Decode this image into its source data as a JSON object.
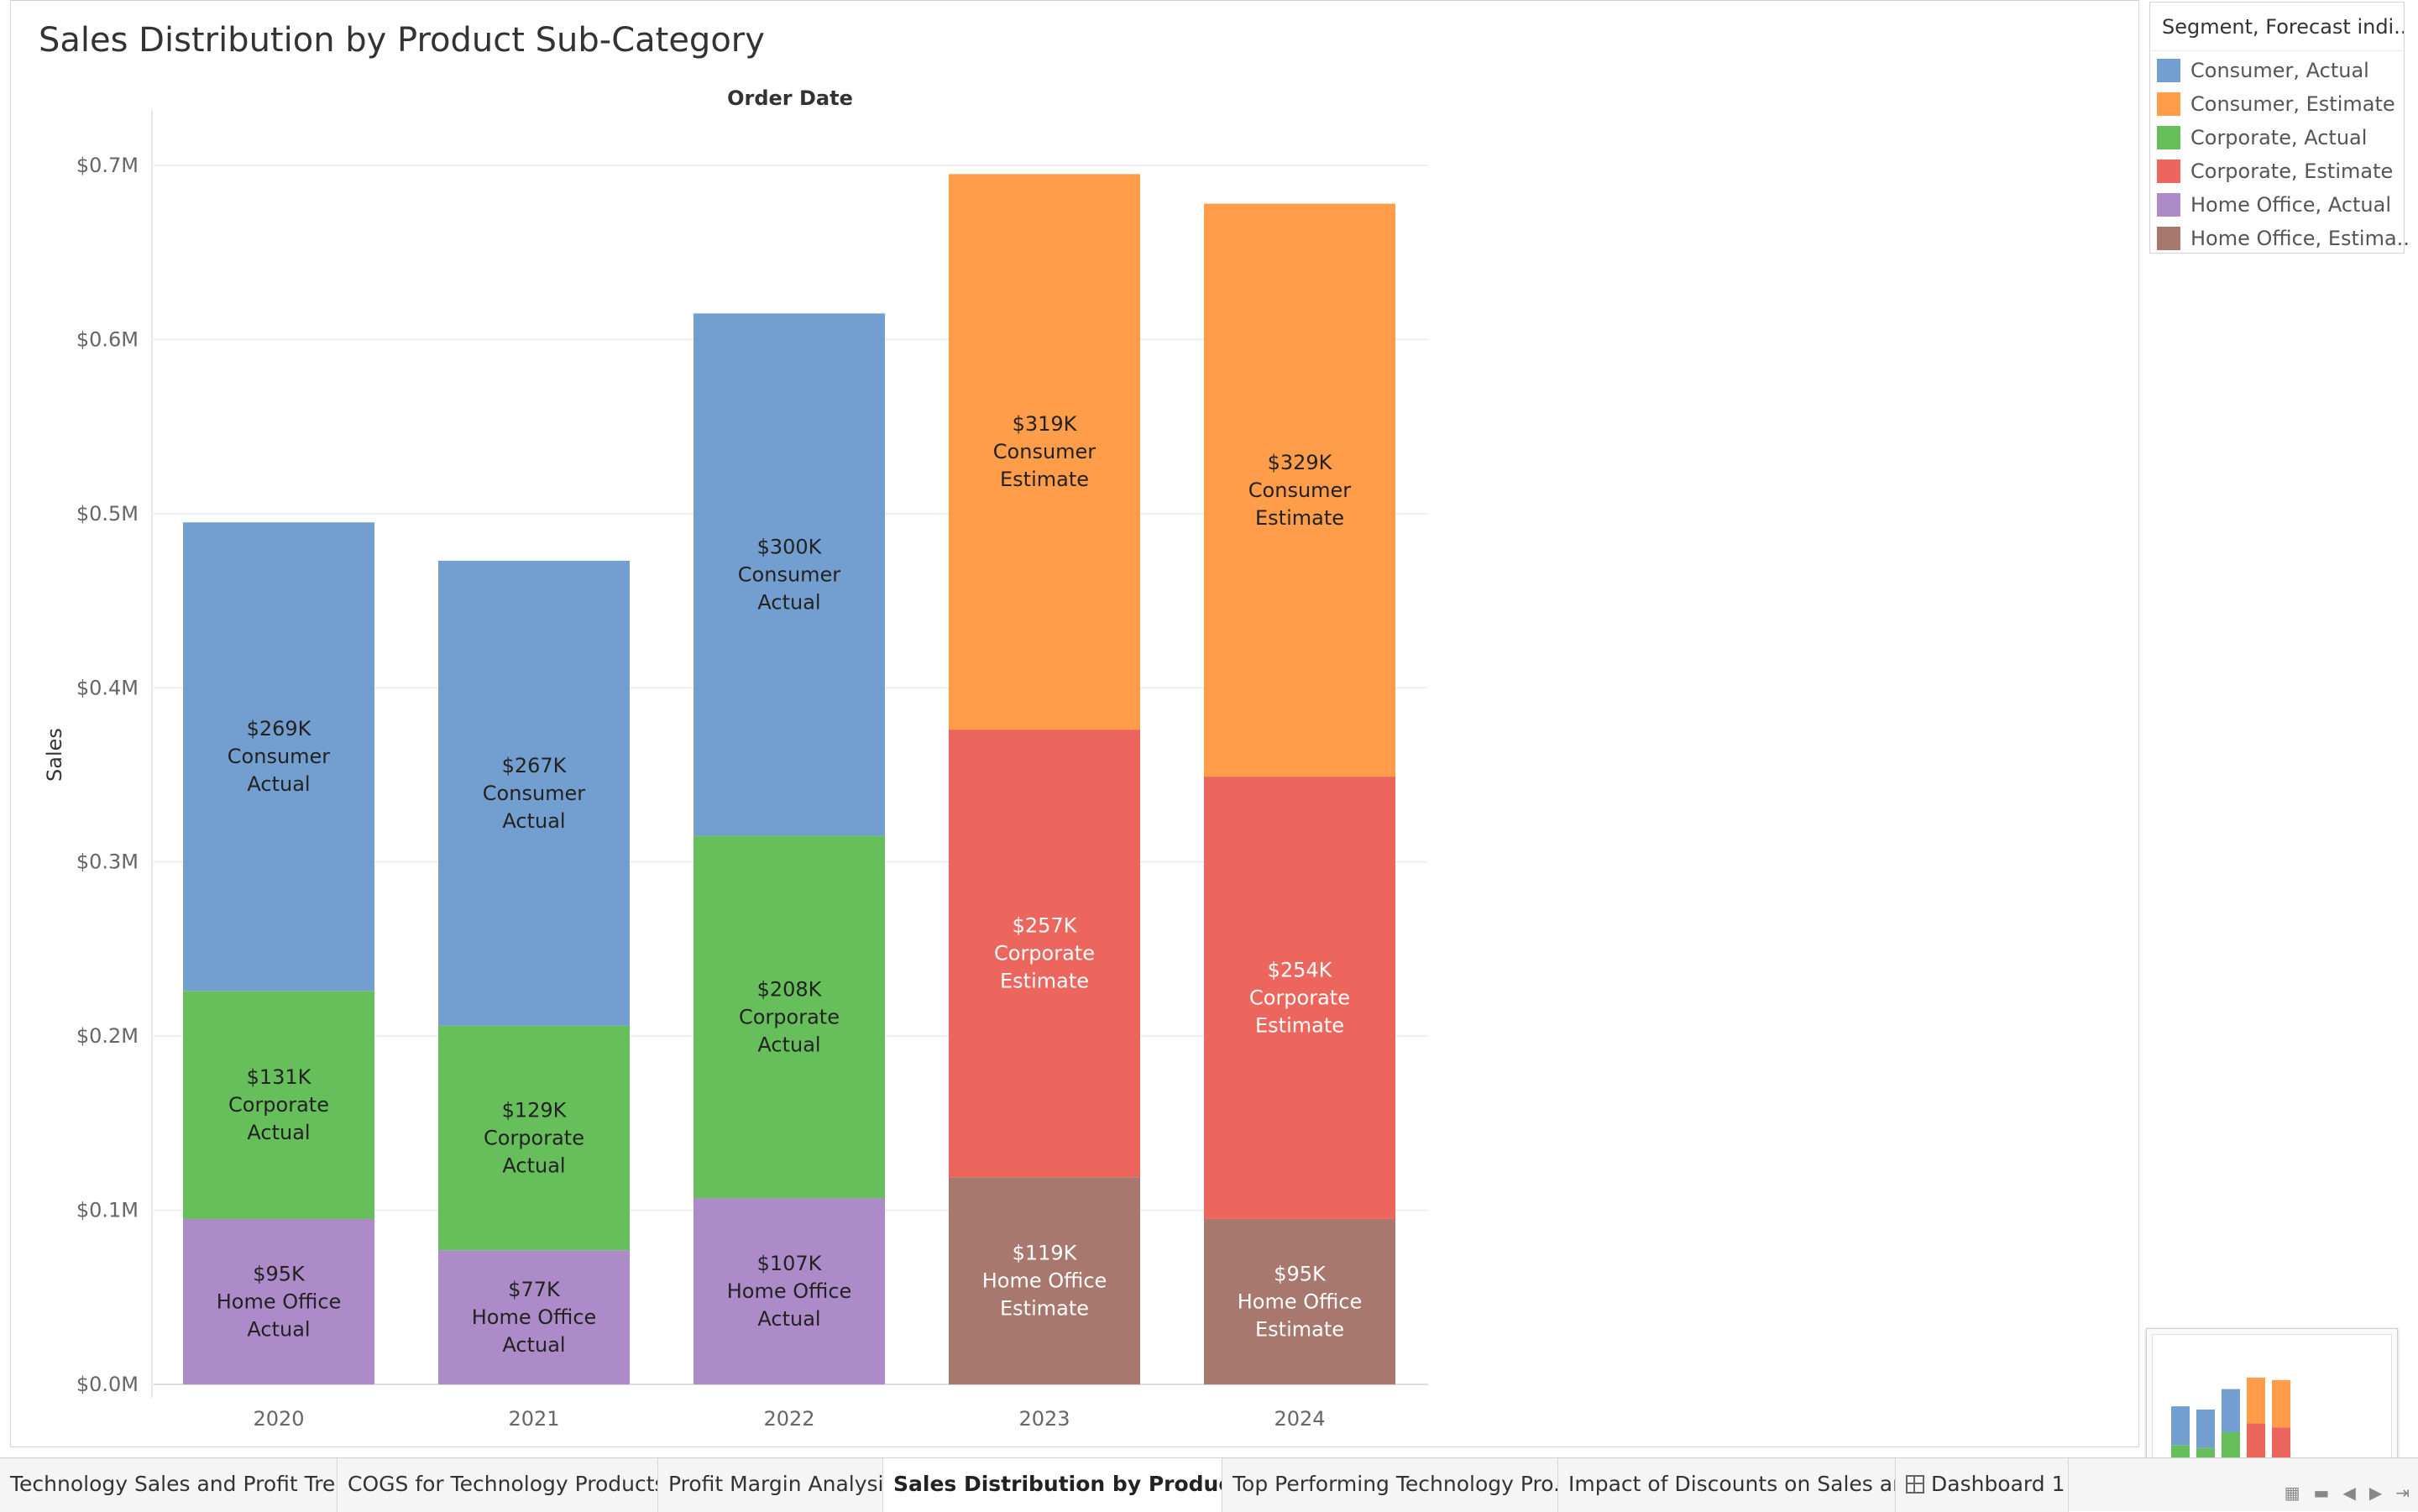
{
  "chart_data": {
    "type": "bar",
    "stacked": true,
    "title": "Sales Distribution by Product Sub-Category",
    "column_header": "Order Date",
    "ylabel": "Sales",
    "ylim": [
      0,
      0.72
    ],
    "yticks": [
      "$0.0M",
      "$0.1M",
      "$0.2M",
      "$0.3M",
      "$0.4M",
      "$0.5M",
      "$0.6M",
      "$0.7M"
    ],
    "ytick_values": [
      0,
      0.1,
      0.2,
      0.3,
      0.4,
      0.5,
      0.6,
      0.7
    ],
    "categories": [
      "2020",
      "2021",
      "2022",
      "2023",
      "2024"
    ],
    "grid": true,
    "legend_position": "top-right",
    "series": [
      {
        "name": "Consumer, Actual",
        "color": "#729fcf",
        "values": [
          0.269,
          0.267,
          0.3,
          null,
          null
        ],
        "labels": [
          [
            "$269K",
            "Consumer",
            "Actual"
          ],
          [
            "$267K",
            "Consumer",
            "Actual"
          ],
          [
            "$300K",
            "Consumer",
            "Actual"
          ],
          null,
          null
        ]
      },
      {
        "name": "Consumer, Estimate",
        "color": "#ff9d4a",
        "values": [
          null,
          null,
          null,
          0.319,
          0.329
        ],
        "labels": [
          null,
          null,
          null,
          [
            "$319K",
            "Consumer",
            "Estimate"
          ],
          [
            "$329K",
            "Consumer",
            "Estimate"
          ]
        ]
      },
      {
        "name": "Corporate, Actual",
        "color": "#67bf5c",
        "values": [
          0.131,
          0.129,
          0.208,
          null,
          null
        ],
        "labels": [
          [
            "$131K",
            "Corporate",
            "Actual"
          ],
          [
            "$129K",
            "Corporate",
            "Actual"
          ],
          [
            "$208K",
            "Corporate",
            "Actual"
          ],
          null,
          null
        ]
      },
      {
        "name": "Corporate, Estimate",
        "color": "#ed665d",
        "values": [
          null,
          null,
          null,
          0.257,
          0.254
        ],
        "labels": [
          null,
          null,
          null,
          [
            "$257K",
            "Corporate",
            "Estimate"
          ],
          [
            "$254K",
            "Corporate",
            "Estimate"
          ]
        ]
      },
      {
        "name": "Home Office, Actual",
        "color": "#ad8bc9",
        "values": [
          0.095,
          0.077,
          0.107,
          null,
          null
        ],
        "labels": [
          [
            "$95K",
            "Home Office",
            "Actual"
          ],
          [
            "$77K",
            "Home Office",
            "Actual"
          ],
          [
            "$107K",
            "Home Office",
            "Actual"
          ],
          null,
          null
        ]
      },
      {
        "name": "Home Office, Estimate",
        "color": "#a8786e",
        "values": [
          null,
          null,
          null,
          0.119,
          0.095
        ],
        "labels": [
          null,
          null,
          null,
          [
            "$119K",
            "Home Office",
            "Estimate"
          ],
          [
            "$95K",
            "Home Office",
            "Estimate"
          ]
        ]
      }
    ],
    "stack_order": [
      "Home Office",
      "Corporate",
      "Consumer"
    ]
  },
  "legend": {
    "title": "Segment, Forecast indi...",
    "items": [
      {
        "label": "Consumer, Actual",
        "color": "#729fcf"
      },
      {
        "label": "Consumer, Estimate",
        "color": "#ff9d4a"
      },
      {
        "label": "Corporate, Actual",
        "color": "#67bf5c"
      },
      {
        "label": "Corporate, Estimate",
        "color": "#ed665d"
      },
      {
        "label": "Home Office, Actual",
        "color": "#ad8bc9"
      },
      {
        "label": "Home Office, Estima..",
        "color": "#a8786e"
      }
    ]
  },
  "tabs": [
    {
      "label": "Technology Sales and Profit Tre...",
      "active": false
    },
    {
      "label": "COGS for Technology Products",
      "active": false
    },
    {
      "label": "Profit Margin Analysis",
      "active": false
    },
    {
      "label": "Sales Distribution by Product ...",
      "active": true
    },
    {
      "label": "Top Performing Technology Pro...",
      "active": false
    },
    {
      "label": "Impact of Discounts on Sales an...",
      "active": false
    },
    {
      "label": "Dashboard 1",
      "active": false,
      "icon": "dashboard-grid-icon"
    }
  ]
}
